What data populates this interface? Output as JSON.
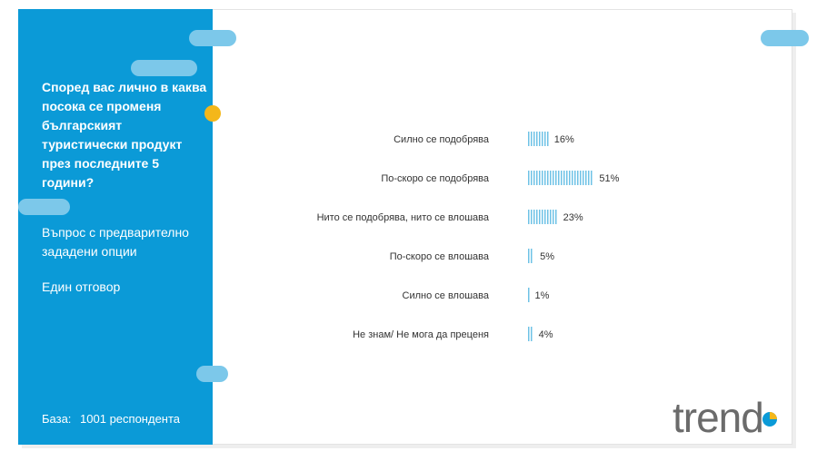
{
  "sidebar": {
    "question": "Според вас лично в каква посока се променя българският туристически продукт през последните 5 години?",
    "question_type": "Въпрос с предварително зададени опции",
    "answers_type": "Един отговор",
    "base_label": "База:",
    "base_value": "1001 респондента"
  },
  "logo": {
    "text": "trend"
  },
  "colors": {
    "sidebar": "#0b9ad7",
    "bar": "#6ec2e6",
    "pill": "#7cc8ea",
    "accent_dot": "#f4b71a"
  },
  "chart_data": {
    "type": "bar",
    "orientation": "horizontal",
    "categories": [
      "Силно се подобрява",
      "По-скоро се подобрява",
      "Нито се подобрява, нито се влошава",
      "По-скоро се влошава",
      "Силно се влошава",
      "Не знам/ Не мога да преценя"
    ],
    "values": [
      16,
      51,
      23,
      5,
      1,
      4
    ],
    "value_labels": [
      "16%",
      "51%",
      "23%",
      "5%",
      "1%",
      "4%"
    ],
    "unit": "%",
    "xlim": [
      0,
      100
    ],
    "grid": false,
    "legend": "none",
    "title": "",
    "xlabel": "",
    "ylabel": ""
  }
}
